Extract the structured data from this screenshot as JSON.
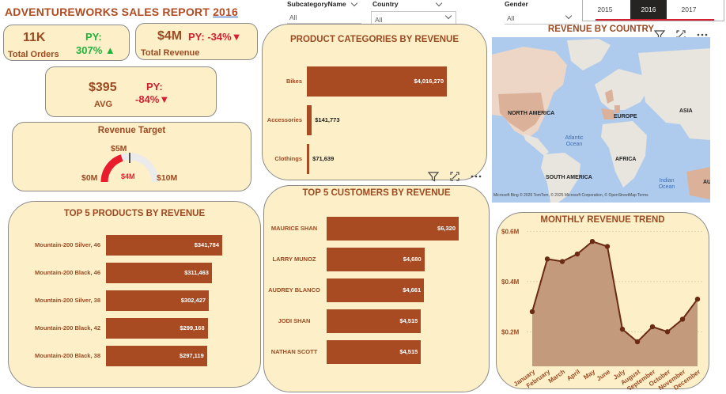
{
  "header": {
    "title_prefix": "ADVENTUREWORKS SALES REPORT ",
    "title_year": "2016"
  },
  "slicers": {
    "subcategory": {
      "label": "SubcategoryName",
      "value": "All"
    },
    "country": {
      "label": "Country",
      "value": "All"
    },
    "gender": {
      "label": "Gender",
      "value": "All"
    },
    "years": [
      "2015",
      "2016",
      "2017"
    ],
    "selected_year": "2016"
  },
  "kpis": {
    "orders": {
      "value": "11K",
      "label": "Total Orders",
      "py_label": "PY:",
      "py_value": "307%",
      "py_arrow": "▲"
    },
    "revenue": {
      "value": "$4M",
      "label": "Total Revenue",
      "py_text": "PY: -34%",
      "py_arrow": "▼"
    },
    "avg": {
      "value": "$395",
      "label": "AVG",
      "py_label": "PY:",
      "py_value": "-84%",
      "py_arrow": "▼"
    }
  },
  "gauge": {
    "title": "Revenue Target",
    "min_label": "$0M",
    "max_label": "$10M",
    "target_label": "$5M",
    "value_label": "$4M"
  },
  "map": {
    "title": "REVENUE BY COUNTRY",
    "labels": {
      "na": "NORTH AMERICA",
      "eu": "EUROPE",
      "asia": "ASIA",
      "af": "AFRICA",
      "sa": "SOUTH AMERICA",
      "au": "AU"
    },
    "seas": {
      "atlantic": "Atlantic Ocean",
      "indian": "Indian Ocean"
    },
    "attribution": "Microsoft Bing  © 2025 TomTom, © 2025 Microsoft Corporation, © OpenStreetMap  Terms"
  },
  "colors": {
    "bar": "#a84a22",
    "card": "#fdf0c9",
    "line": "#6b2a14",
    "area": "#c49a7c",
    "green": "#20b23c",
    "red": "#d42030"
  },
  "chart_data": [
    {
      "type": "bar",
      "title": "PRODUCT CATEGORIES BY REVENUE",
      "categories": [
        "Bikes",
        "Accessories",
        "Clothings"
      ],
      "values": [
        4016270,
        141773,
        71639
      ],
      "value_labels": [
        "$4,016,270",
        "$141,773",
        "$71,639"
      ]
    },
    {
      "type": "bar",
      "title": "TOP 5 PRODUCTS BY REVENUE",
      "categories": [
        "Mountain-200 Silver, 46",
        "Mountain-200 Black, 46",
        "Mountain-200 Silver, 38",
        "Mountain-200 Black, 42",
        "Mountain-200 Black, 38"
      ],
      "values": [
        341784,
        311463,
        302427,
        299168,
        297119
      ],
      "value_labels": [
        "$341,784",
        "$311,463",
        "$302,427",
        "$299,168",
        "$297,119"
      ]
    },
    {
      "type": "bar",
      "title": "TOP 5 CUSTOMERS BY REVENUE",
      "categories": [
        "MAURICE SHAN",
        "LARRY MUNOZ",
        "AUDREY BLANCO",
        "JODI SHAN",
        "NATHAN SCOTT"
      ],
      "values": [
        6320,
        4680,
        4661,
        4515,
        4515
      ],
      "value_labels": [
        "$6,320",
        "$4,680",
        "$4,661",
        "$4,515",
        "$4,515"
      ]
    },
    {
      "type": "area",
      "title": "MONTHLY REVENUE TREND",
      "categories": [
        "January",
        "February",
        "March",
        "April",
        "May",
        "June",
        "July",
        "August",
        "September",
        "October",
        "November",
        "December"
      ],
      "values": [
        0.28,
        0.49,
        0.48,
        0.51,
        0.56,
        0.54,
        0.21,
        0.16,
        0.22,
        0.2,
        0.25,
        0.33
      ],
      "y_ticks": [
        "$0.2M",
        "$0.4M",
        "$0.6M"
      ],
      "y_tick_values": [
        0.2,
        0.4,
        0.6
      ],
      "ylim": [
        0.1,
        0.63
      ],
      "unit": "$M"
    }
  ]
}
